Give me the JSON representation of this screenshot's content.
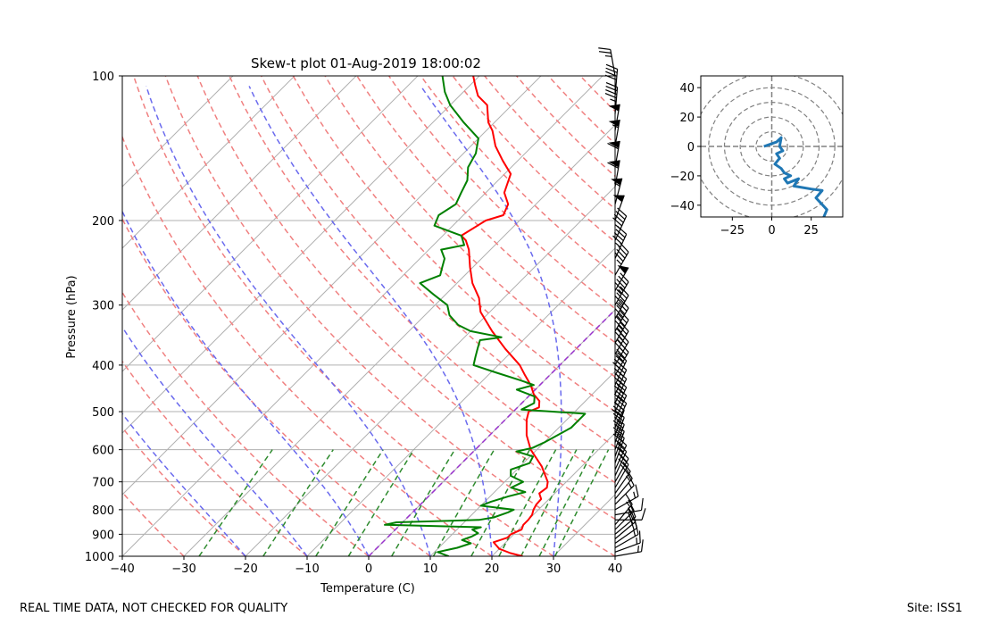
{
  "footer": {
    "left_note": "REAL TIME DATA, NOT CHECKED FOR QUALITY",
    "site": "Site: ISS1"
  },
  "chart_data": [
    {
      "type": "line",
      "subtype": "skew-t",
      "title": "Skew-t plot 01-Aug-2019 18:00:02",
      "xlabel": "Temperature (C)",
      "ylabel": "Pressure (hPa)",
      "xlim": [
        -40,
        40
      ],
      "ylim": [
        1000,
        100
      ],
      "yscale": "log",
      "xticks": [
        "−40",
        "−30",
        "−20",
        "−10",
        "0",
        "10",
        "20",
        "30",
        "40"
      ],
      "yticks": [
        "1000",
        "900",
        "800",
        "700",
        "600",
        "500",
        "400",
        "300",
        "200",
        "100"
      ],
      "grid": true,
      "colors": {
        "temperature": "#ff0000",
        "dewpoint": "#008000",
        "dry_adiabats": "#f08080",
        "moist_adiabats": "#6a6aee",
        "mixing_ratio": "#2e8b2e",
        "isotherm_0C": "#9932cc"
      },
      "series": [
        {
          "role": "temperature",
          "color": "#ff0000",
          "points": [
            [
              1000,
              25.0
            ],
            [
              985,
              22.5
            ],
            [
              965,
              20.0
            ],
            [
              950,
              19.0
            ],
            [
              935,
              18.0
            ],
            [
              915,
              19.5
            ],
            [
              900,
              19.5
            ],
            [
              880,
              20.5
            ],
            [
              860,
              20.0
            ],
            [
              840,
              20.0
            ],
            [
              820,
              19.8
            ],
            [
              800,
              19.2
            ],
            [
              780,
              18.8
            ],
            [
              760,
              18.7
            ],
            [
              740,
              17.5
            ],
            [
              720,
              17.8
            ],
            [
              700,
              17.0
            ],
            [
              650,
              13.5
            ],
            [
              600,
              9.0
            ],
            [
              560,
              6.0
            ],
            [
              520,
              3.5
            ],
            [
              500,
              2.5
            ],
            [
              490,
              3.5
            ],
            [
              475,
              2.5
            ],
            [
              460,
              0.5
            ],
            [
              440,
              -1.5
            ],
            [
              420,
              -4.0
            ],
            [
              400,
              -6.5
            ],
            [
              370,
              -11.5
            ],
            [
              340,
              -16.5
            ],
            [
              310,
              -21.5
            ],
            [
              290,
              -24.0
            ],
            [
              270,
              -27.5
            ],
            [
              250,
              -30.5
            ],
            [
              230,
              -33.5
            ],
            [
              220,
              -35.5
            ],
            [
              215,
              -37.0
            ],
            [
              205,
              -36.0
            ],
            [
              200,
              -35.5
            ],
            [
              195,
              -33.5
            ],
            [
              185,
              -34.5
            ],
            [
              175,
              -37.0
            ],
            [
              160,
              -39.0
            ],
            [
              150,
              -42.5
            ],
            [
              140,
              -46.0
            ],
            [
              130,
              -49.0
            ],
            [
              125,
              -51.0
            ],
            [
              115,
              -54.0
            ],
            [
              110,
              -57.0
            ],
            [
              105,
              -59.0
            ],
            [
              100,
              -61.0
            ]
          ]
        },
        {
          "role": "dewpoint",
          "color": "#008000",
          "points": [
            [
              1000,
              13.0
            ],
            [
              980,
              10.5
            ],
            [
              960,
              13.0
            ],
            [
              940,
              14.5
            ],
            [
              925,
              12.5
            ],
            [
              910,
              13.5
            ],
            [
              895,
              14.0
            ],
            [
              880,
              12.5
            ],
            [
              870,
              13.5
            ],
            [
              860,
              -2.5
            ],
            [
              850,
              -1.0
            ],
            [
              840,
              12.0
            ],
            [
              830,
              14.0
            ],
            [
              810,
              15.5
            ],
            [
              800,
              16.0
            ],
            [
              785,
              10.0
            ],
            [
              770,
              11.0
            ],
            [
              750,
              13.0
            ],
            [
              735,
              15.0
            ],
            [
              720,
              12.0
            ],
            [
              700,
              13.0
            ],
            [
              680,
              10.0
            ],
            [
              660,
              9.0
            ],
            [
              640,
              11.0
            ],
            [
              620,
              10.5
            ],
            [
              605,
              7.0
            ],
            [
              595,
              9.0
            ],
            [
              580,
              10.0
            ],
            [
              560,
              11.0
            ],
            [
              540,
              12.0
            ],
            [
              520,
              12.0
            ],
            [
              505,
              12.0
            ],
            [
              495,
              1.0
            ],
            [
              480,
              2.0
            ],
            [
              465,
              1.0
            ],
            [
              450,
              -3.0
            ],
            [
              440,
              -1.0
            ],
            [
              430,
              -4.0
            ],
            [
              415,
              -9.0
            ],
            [
              400,
              -14.0
            ],
            [
              385,
              -15.0
            ],
            [
              370,
              -16.0
            ],
            [
              355,
              -17.0
            ],
            [
              350,
              -14.0
            ],
            [
              340,
              -20.0
            ],
            [
              330,
              -23.0
            ],
            [
              315,
              -26.0
            ],
            [
              300,
              -28.0
            ],
            [
              285,
              -32.0
            ],
            [
              270,
              -36.0
            ],
            [
              260,
              -34.0
            ],
            [
              250,
              -35.0
            ],
            [
              240,
              -36.0
            ],
            [
              230,
              -38.0
            ],
            [
              225,
              -35.0
            ],
            [
              215,
              -37.0
            ],
            [
              205,
              -43.0
            ],
            [
              195,
              -44.0
            ],
            [
              185,
              -43.0
            ],
            [
              175,
              -44.0
            ],
            [
              165,
              -45.0
            ],
            [
              155,
              -47.0
            ],
            [
              145,
              -48.0
            ],
            [
              135,
              -50.0
            ],
            [
              125,
              -55.0
            ],
            [
              115,
              -60.0
            ],
            [
              108,
              -63.0
            ],
            [
              100,
              -66.0
            ]
          ]
        }
      ],
      "background_lines": [
        "dry adiabats",
        "moist adiabats",
        "mixing ratio lines",
        "skewed isotherms"
      ],
      "wind_barbs": "profile of wind barbs along the right axis from 1000 to 100 hPa"
    },
    {
      "type": "line",
      "subtype": "hodograph",
      "xlim": [
        -45,
        45
      ],
      "ylim": [
        -48,
        48
      ],
      "xticks": [
        "−25",
        "0",
        "25"
      ],
      "yticks": [
        "−40",
        "−20",
        "0",
        "20",
        "40"
      ],
      "rings": [
        10,
        20,
        30,
        40,
        50
      ],
      "color": "#1f77b4",
      "points": [
        [
          -5,
          0
        ],
        [
          3,
          3
        ],
        [
          6,
          6
        ],
        [
          5,
          0
        ],
        [
          7,
          -3
        ],
        [
          3,
          -5
        ],
        [
          5,
          -8
        ],
        [
          2,
          -12
        ],
        [
          6,
          -15
        ],
        [
          8,
          -18
        ],
        [
          12,
          -20
        ],
        [
          8,
          -22
        ],
        [
          10,
          -25
        ],
        [
          17,
          -22
        ],
        [
          14,
          -27
        ],
        [
          25,
          -29
        ],
        [
          32,
          -30
        ],
        [
          28,
          -35
        ],
        [
          35,
          -43
        ],
        [
          33,
          -48
        ]
      ]
    }
  ]
}
